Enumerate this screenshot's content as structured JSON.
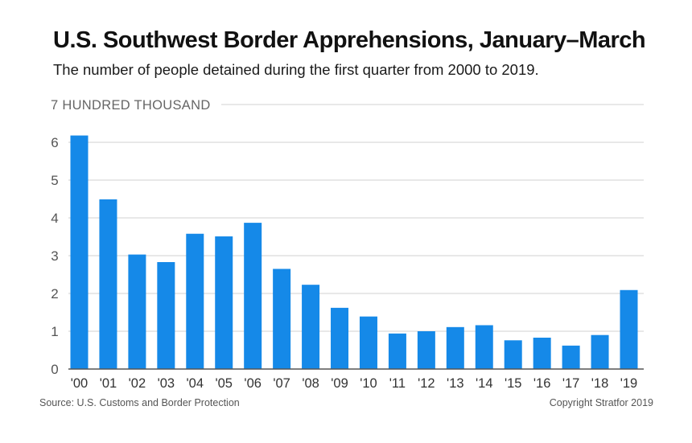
{
  "header": {
    "title": "U.S. Southwest Border Apprehensions, January–March",
    "subtitle": "The number of people detained during the first quarter from 2000 to 2019."
  },
  "footer": {
    "source": "Source: U.S. Customs and Border Protection",
    "copyright": "Copyright Stratfor 2019"
  },
  "chart_data": {
    "type": "bar",
    "title": "U.S. Southwest Border Apprehensions, January–March",
    "subtitle": "The number of people detained during the first quarter from 2000 to 2019.",
    "ylabel": "HUNDRED THOUSAND",
    "top_tick_label": "7 HUNDRED THOUSAND",
    "xlabel": "",
    "ylim": [
      0,
      7
    ],
    "yticks": [
      0,
      1,
      2,
      3,
      4,
      5,
      6
    ],
    "categories": [
      "'00",
      "'01",
      "'02",
      "'03",
      "'04",
      "'05",
      "'06",
      "'07",
      "'08",
      "'09",
      "'10",
      "'11",
      "'12",
      "'13",
      "'14",
      "'15",
      "'16",
      "'17",
      "'18",
      "'19"
    ],
    "values": [
      6.18,
      4.49,
      3.03,
      2.83,
      3.58,
      3.51,
      3.87,
      2.65,
      2.23,
      1.62,
      1.39,
      0.94,
      1.0,
      1.11,
      1.16,
      0.76,
      0.83,
      0.62,
      0.9,
      2.09
    ],
    "bar_color": "#1589e8",
    "grid": true,
    "grid_color": "#d0d0d0",
    "axis_color": "#555555"
  }
}
